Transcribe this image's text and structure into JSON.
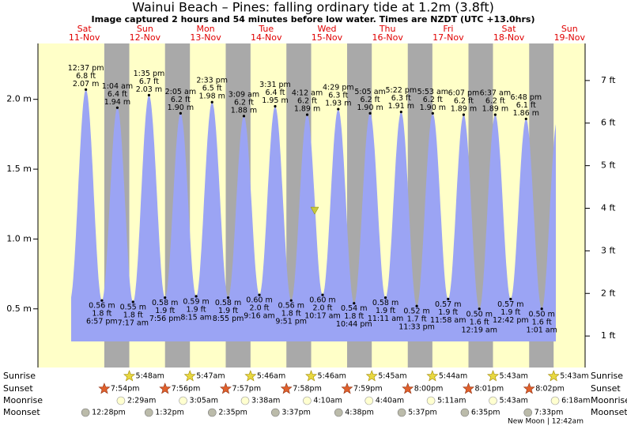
{
  "chart_data": {
    "type": "tide",
    "title": "Wainui Beach – Pines: falling  ordinary tide at 1.2m (3.8ft)",
    "subtitle": "Image captured 2 hours and 54 minutes before low water. Times are NZDT (UTC +13.0hrs)",
    "current_level": 1.2,
    "days": {
      "weekdays": [
        "Sat",
        "Sun",
        "Mon",
        "Tue",
        "Wed",
        "Thu",
        "Fri",
        "Sat",
        "Sun"
      ],
      "dates": [
        "11-Nov",
        "12-Nov",
        "13-Nov",
        "14-Nov",
        "15-Nov",
        "16-Nov",
        "17-Nov",
        "18-Nov",
        "19-Nov"
      ]
    },
    "ylim": [
      0.08,
      2.4
    ],
    "yticks": [
      {
        "value": 0.5,
        "label": "0.5 m"
      },
      {
        "value": 1.0,
        "label": "1.0 m"
      },
      {
        "value": 1.5,
        "label": "1.5 m"
      },
      {
        "value": 2.0,
        "label": "2.0 m"
      }
    ],
    "y2lim": [
      0.26,
      7.87
    ],
    "y2ticks": [
      {
        "value": 1,
        "label": "1 ft"
      },
      {
        "value": 2,
        "label": "2 ft"
      },
      {
        "value": 3,
        "label": "3 ft"
      },
      {
        "value": 4,
        "label": "4 ft"
      },
      {
        "value": 5,
        "label": "5 ft"
      },
      {
        "value": 6,
        "label": "6 ft"
      },
      {
        "value": 7,
        "label": "7 ft"
      }
    ],
    "color": "#9ba4f4",
    "extremes": {
      "times": [
        "12:37 pm",
        "6:57 pm",
        "1:04 am",
        "7:17 am",
        "1:35 pm",
        "7:56 pm",
        "2:05 am",
        "8:15 am",
        "2:33 pm",
        "8:55 pm",
        "3:09 am",
        "9:16 am",
        "3:31 pm",
        "9:51 pm",
        "4:12 am",
        "10:17 am",
        "4:29 pm",
        "10:44 pm",
        "5:05 am",
        "11:11 am",
        "5:22 pm",
        "11:33 pm",
        "5:53 am",
        "11:58 am",
        "6:07 pm",
        "12:19 am",
        "6:37 am",
        "12:42 pm",
        "6:48 pm",
        "1:01 am"
      ],
      "values": [
        2.07,
        0.56,
        1.94,
        0.55,
        2.03,
        0.58,
        1.9,
        0.59,
        1.98,
        0.58,
        1.88,
        0.6,
        1.95,
        0.56,
        1.89,
        0.6,
        1.93,
        0.54,
        1.9,
        0.58,
        1.91,
        0.52,
        1.9,
        0.57,
        1.89,
        0.5,
        1.89,
        0.57,
        1.86,
        0.5
      ],
      "value_labels": [
        "2.07 m",
        "0.56 m",
        "1.94 m",
        "0.55 m",
        "2.03 m",
        "0.58 m",
        "1.90 m",
        "0.59 m",
        "1.98 m",
        "0.58 m",
        "1.88 m",
        "0.60 m",
        "1.95 m",
        "0.56 m",
        "1.89 m",
        "0.60 m",
        "1.93 m",
        "0.54 m",
        "1.90 m",
        "0.58 m",
        "1.91 m",
        "0.52 m",
        "1.90 m",
        "0.57 m",
        "1.89 m",
        "0.50 m",
        "1.89 m",
        "0.57 m",
        "1.86 m",
        "0.50 m"
      ],
      "ft_labels": [
        "6.8 ft",
        "1.8 ft",
        "6.4 ft",
        "1.8 ft",
        "6.7 ft",
        "1.9 ft",
        "6.2 ft",
        "1.9 ft",
        "6.5 ft",
        "1.9 ft",
        "6.2 ft",
        "2.0 ft",
        "6.4 ft",
        "1.8 ft",
        "6.2 ft",
        "2.0 ft",
        "6.3 ft",
        "1.8 ft",
        "6.2 ft",
        "1.9 ft",
        "6.3 ft",
        "1.7 ft",
        "6.2 ft",
        "1.9 ft",
        "6.2 ft",
        "1.6 ft",
        "6.2 ft",
        "1.9 ft",
        "6.1 ft",
        "1.6 ft"
      ]
    },
    "rows": [
      "Sunrise",
      "Sunset",
      "Moonrise",
      "Moonset"
    ],
    "sunrise": [
      "5:48am",
      "5:47am",
      "5:46am",
      "5:46am",
      "5:45am",
      "5:44am",
      "5:43am",
      "5:43am"
    ],
    "sunset": [
      "7:54pm",
      "7:56pm",
      "7:57pm",
      "7:58pm",
      "7:59pm",
      "8:00pm",
      "8:01pm",
      "8:02pm"
    ],
    "moonrise": [
      "2:29am",
      "3:05am",
      "3:38am",
      "4:10am",
      "4:40am",
      "5:11am",
      "5:43am",
      "6:18am"
    ],
    "moonset": [
      "12:28pm",
      "1:32pm",
      "2:35pm",
      "3:37pm",
      "4:38pm",
      "5:37pm",
      "6:35pm",
      "7:33pm"
    ],
    "moon_phase": "New Moon | 12:42am"
  }
}
